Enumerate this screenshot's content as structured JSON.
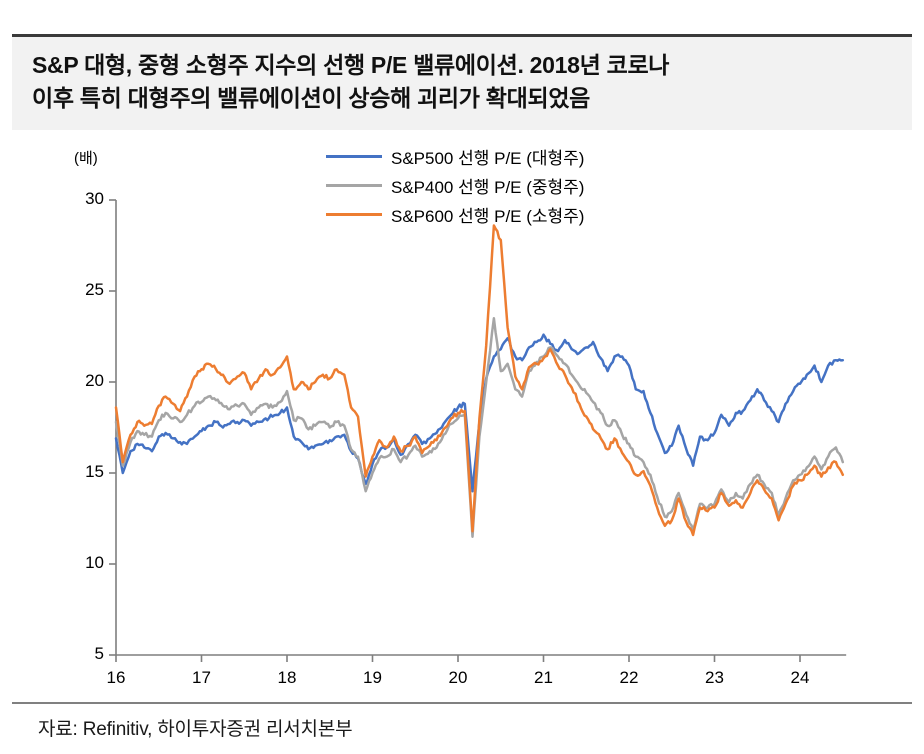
{
  "title": {
    "line1": "S&P 대형, 중형 소형주 지수의 선행 P/E 밸류에이션. 2018년 코로나",
    "line2": "이후 특히 대형주의 밸류에이션이 상승해 괴리가 확대되었음"
  },
  "source": "자료: Refinitiv, 하이투자증권 리서치본부",
  "chart_data": {
    "type": "line",
    "title": "S&P 대형, 중형 소형주 지수의 선행 P/E 밸류에이션",
    "unit_label": "(배)",
    "xlabel": "",
    "ylabel": "선행 P/E (배)",
    "ylim": [
      5,
      30
    ],
    "xlim": [
      16,
      24.54
    ],
    "grid": false,
    "legend_position": "top-center",
    "y_ticks": [
      30,
      25,
      20,
      15,
      10,
      5
    ],
    "y_tick_labels": [
      "30",
      "25",
      "20",
      "15",
      "10",
      "5"
    ],
    "x_ticks": [
      16,
      17,
      18,
      19,
      20,
      21,
      22,
      23,
      24
    ],
    "x_tick_labels": [
      "16",
      "17",
      "18",
      "19",
      "20",
      "21",
      "22",
      "23",
      "24"
    ],
    "x": [
      16.0,
      16.08,
      16.17,
      16.25,
      16.33,
      16.42,
      16.5,
      16.58,
      16.67,
      16.75,
      16.83,
      16.92,
      17.0,
      17.08,
      17.17,
      17.25,
      17.33,
      17.42,
      17.5,
      17.58,
      17.67,
      17.75,
      17.83,
      17.92,
      18.0,
      18.08,
      18.17,
      18.25,
      18.33,
      18.42,
      18.5,
      18.58,
      18.67,
      18.75,
      18.83,
      18.92,
      19.0,
      19.08,
      19.17,
      19.25,
      19.33,
      19.42,
      19.5,
      19.58,
      19.67,
      19.75,
      19.83,
      19.92,
      20.0,
      20.08,
      20.17,
      20.25,
      20.33,
      20.42,
      20.5,
      20.58,
      20.67,
      20.75,
      20.83,
      20.92,
      21.0,
      21.08,
      21.17,
      21.25,
      21.33,
      21.42,
      21.5,
      21.58,
      21.67,
      21.75,
      21.83,
      21.92,
      22.0,
      22.08,
      22.17,
      22.25,
      22.33,
      22.42,
      22.5,
      22.58,
      22.67,
      22.75,
      22.83,
      22.92,
      23.0,
      23.08,
      23.17,
      23.25,
      23.33,
      23.42,
      23.5,
      23.58,
      23.67,
      23.75,
      23.83,
      23.92,
      24.0,
      24.08,
      24.17,
      24.25,
      24.33,
      24.42,
      24.5
    ],
    "series": [
      {
        "name": "S&P500 선행 P/E (대형주)",
        "color": "#4472C4",
        "values": [
          16.9,
          15.0,
          16.2,
          16.6,
          16.4,
          16.2,
          17.0,
          17.2,
          16.9,
          16.7,
          16.6,
          17.0,
          17.3,
          17.6,
          17.8,
          17.5,
          17.7,
          17.8,
          17.9,
          17.6,
          17.8,
          18.0,
          18.1,
          18.3,
          18.6,
          17.0,
          16.7,
          16.3,
          16.5,
          16.6,
          16.8,
          17.0,
          17.1,
          16.2,
          15.8,
          14.4,
          15.5,
          16.2,
          16.4,
          16.9,
          16.0,
          16.6,
          17.1,
          16.6,
          16.9,
          17.2,
          17.7,
          18.2,
          18.6,
          18.8,
          14.0,
          17.8,
          20.2,
          21.4,
          21.8,
          22.4,
          21.4,
          21.2,
          21.9,
          22.2,
          22.6,
          22.1,
          21.7,
          22.3,
          21.8,
          21.6,
          21.9,
          22.2,
          21.3,
          20.6,
          21.4,
          21.4,
          20.9,
          19.6,
          19.5,
          18.3,
          17.2,
          16.1,
          16.5,
          17.6,
          16.3,
          15.4,
          17.0,
          16.8,
          17.2,
          18.2,
          17.6,
          18.3,
          18.4,
          19.0,
          19.6,
          19.0,
          18.4,
          17.8,
          18.8,
          19.5,
          19.9,
          20.4,
          20.9,
          20.0,
          20.9,
          21.2,
          21.2
        ]
      },
      {
        "name": "S&P400 선행 P/E (중형주)",
        "color": "#A5A5A5",
        "values": [
          17.8,
          15.4,
          16.7,
          17.3,
          17.1,
          17.0,
          17.9,
          18.3,
          18.0,
          17.8,
          18.2,
          18.7,
          18.9,
          19.2,
          19.0,
          18.7,
          18.5,
          18.7,
          18.8,
          18.2,
          18.6,
          18.8,
          18.6,
          18.9,
          19.5,
          17.9,
          18.0,
          17.4,
          17.6,
          17.8,
          17.5,
          17.8,
          17.6,
          16.3,
          15.9,
          14.0,
          15.0,
          15.8,
          15.9,
          16.3,
          15.6,
          16.0,
          16.5,
          15.9,
          16.2,
          16.4,
          17.1,
          17.7,
          18.0,
          18.2,
          11.5,
          17.0,
          20.0,
          23.5,
          20.6,
          21.0,
          19.6,
          19.2,
          20.6,
          21.1,
          21.4,
          21.9,
          21.4,
          21.0,
          20.4,
          19.8,
          19.4,
          18.9,
          18.3,
          17.6,
          17.9,
          17.1,
          16.6,
          15.9,
          15.6,
          14.9,
          13.7,
          12.6,
          12.9,
          13.9,
          12.7,
          11.9,
          13.3,
          13.1,
          13.3,
          14.1,
          13.4,
          13.9,
          13.6,
          14.4,
          14.9,
          14.4,
          13.9,
          12.7,
          13.6,
          14.6,
          14.9,
          15.3,
          15.9,
          15.2,
          15.9,
          16.4,
          15.6
        ]
      },
      {
        "name": "S&P600 선행 P/E (소형주)",
        "color": "#ED7D31",
        "values": [
          18.6,
          15.6,
          17.1,
          17.8,
          17.6,
          17.7,
          18.7,
          19.2,
          18.8,
          18.4,
          19.2,
          20.3,
          20.7,
          21.0,
          20.7,
          20.4,
          19.9,
          20.3,
          20.5,
          19.6,
          20.2,
          20.7,
          20.4,
          20.8,
          21.4,
          19.6,
          20.0,
          19.6,
          20.0,
          20.4,
          20.2,
          20.7,
          20.4,
          18.6,
          18.1,
          14.8,
          15.9,
          16.8,
          16.4,
          17.0,
          16.2,
          16.5,
          17.0,
          16.1,
          16.5,
          16.8,
          17.4,
          18.0,
          18.3,
          18.4,
          11.8,
          18.0,
          22.0,
          28.6,
          27.8,
          23.0,
          20.3,
          19.6,
          20.8,
          21.0,
          21.3,
          21.8,
          20.9,
          20.4,
          19.7,
          18.8,
          18.1,
          17.4,
          16.9,
          16.3,
          16.9,
          16.1,
          15.6,
          14.9,
          15.1,
          14.3,
          13.1,
          12.1,
          12.4,
          13.6,
          12.3,
          11.6,
          13.1,
          12.9,
          13.1,
          13.9,
          13.2,
          13.5,
          13.1,
          13.9,
          14.6,
          14.1,
          13.6,
          12.4,
          13.3,
          14.3,
          14.6,
          14.9,
          15.4,
          14.8,
          15.3,
          15.6,
          14.9
        ]
      }
    ]
  }
}
